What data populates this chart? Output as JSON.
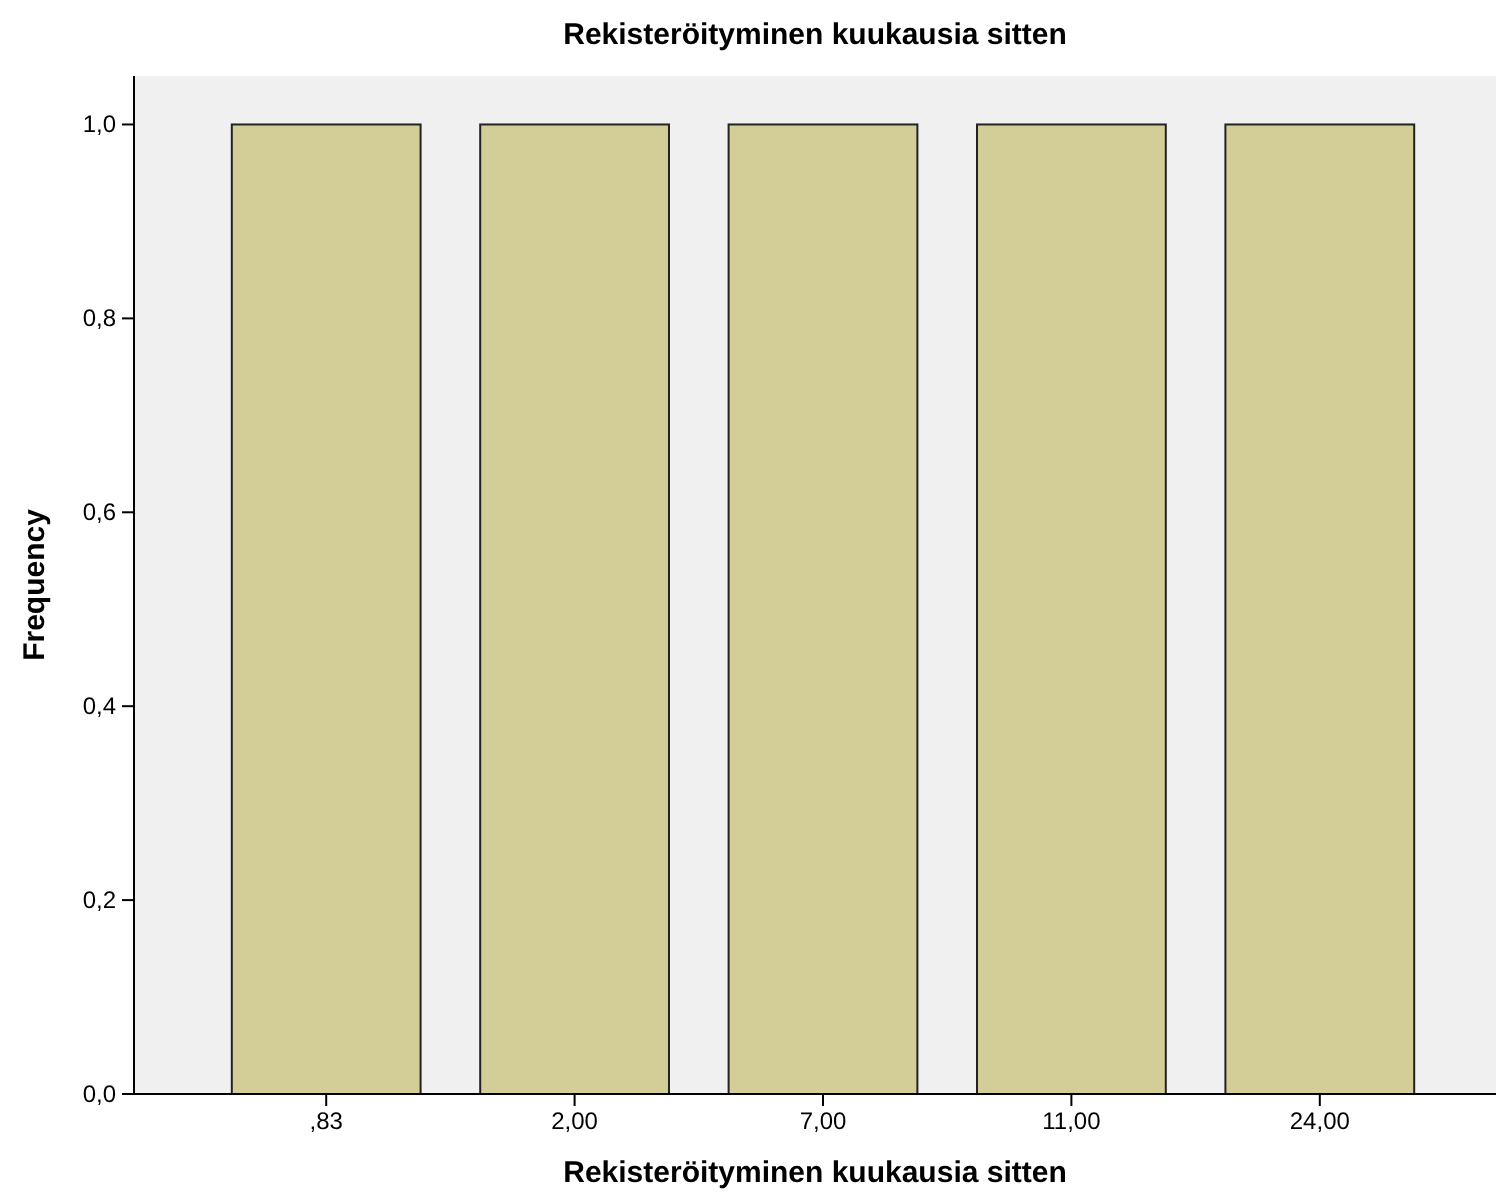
{
  "chart_data": {
    "type": "bar",
    "title": "Rekisteröityminen kuukausia sitten",
    "xlabel": "Rekisteröityminen kuukausia sitten",
    "ylabel": "Frequency",
    "categories": [
      ",83",
      "2,00",
      "7,00",
      "11,00",
      "24,00"
    ],
    "values": [
      1,
      1,
      1,
      1,
      1
    ],
    "color": "#d3ce97",
    "ylim": [
      0,
      1.05
    ],
    "yticks": [
      {
        "value": 0,
        "label": "0,0"
      },
      {
        "value": 0.2,
        "label": "0,2"
      },
      {
        "value": 0.4,
        "label": "0,4"
      },
      {
        "value": 0.6,
        "label": "0,6"
      },
      {
        "value": 0.8,
        "label": "0,8"
      },
      {
        "value": 1,
        "label": "1,0"
      }
    ],
    "grid": false
  }
}
